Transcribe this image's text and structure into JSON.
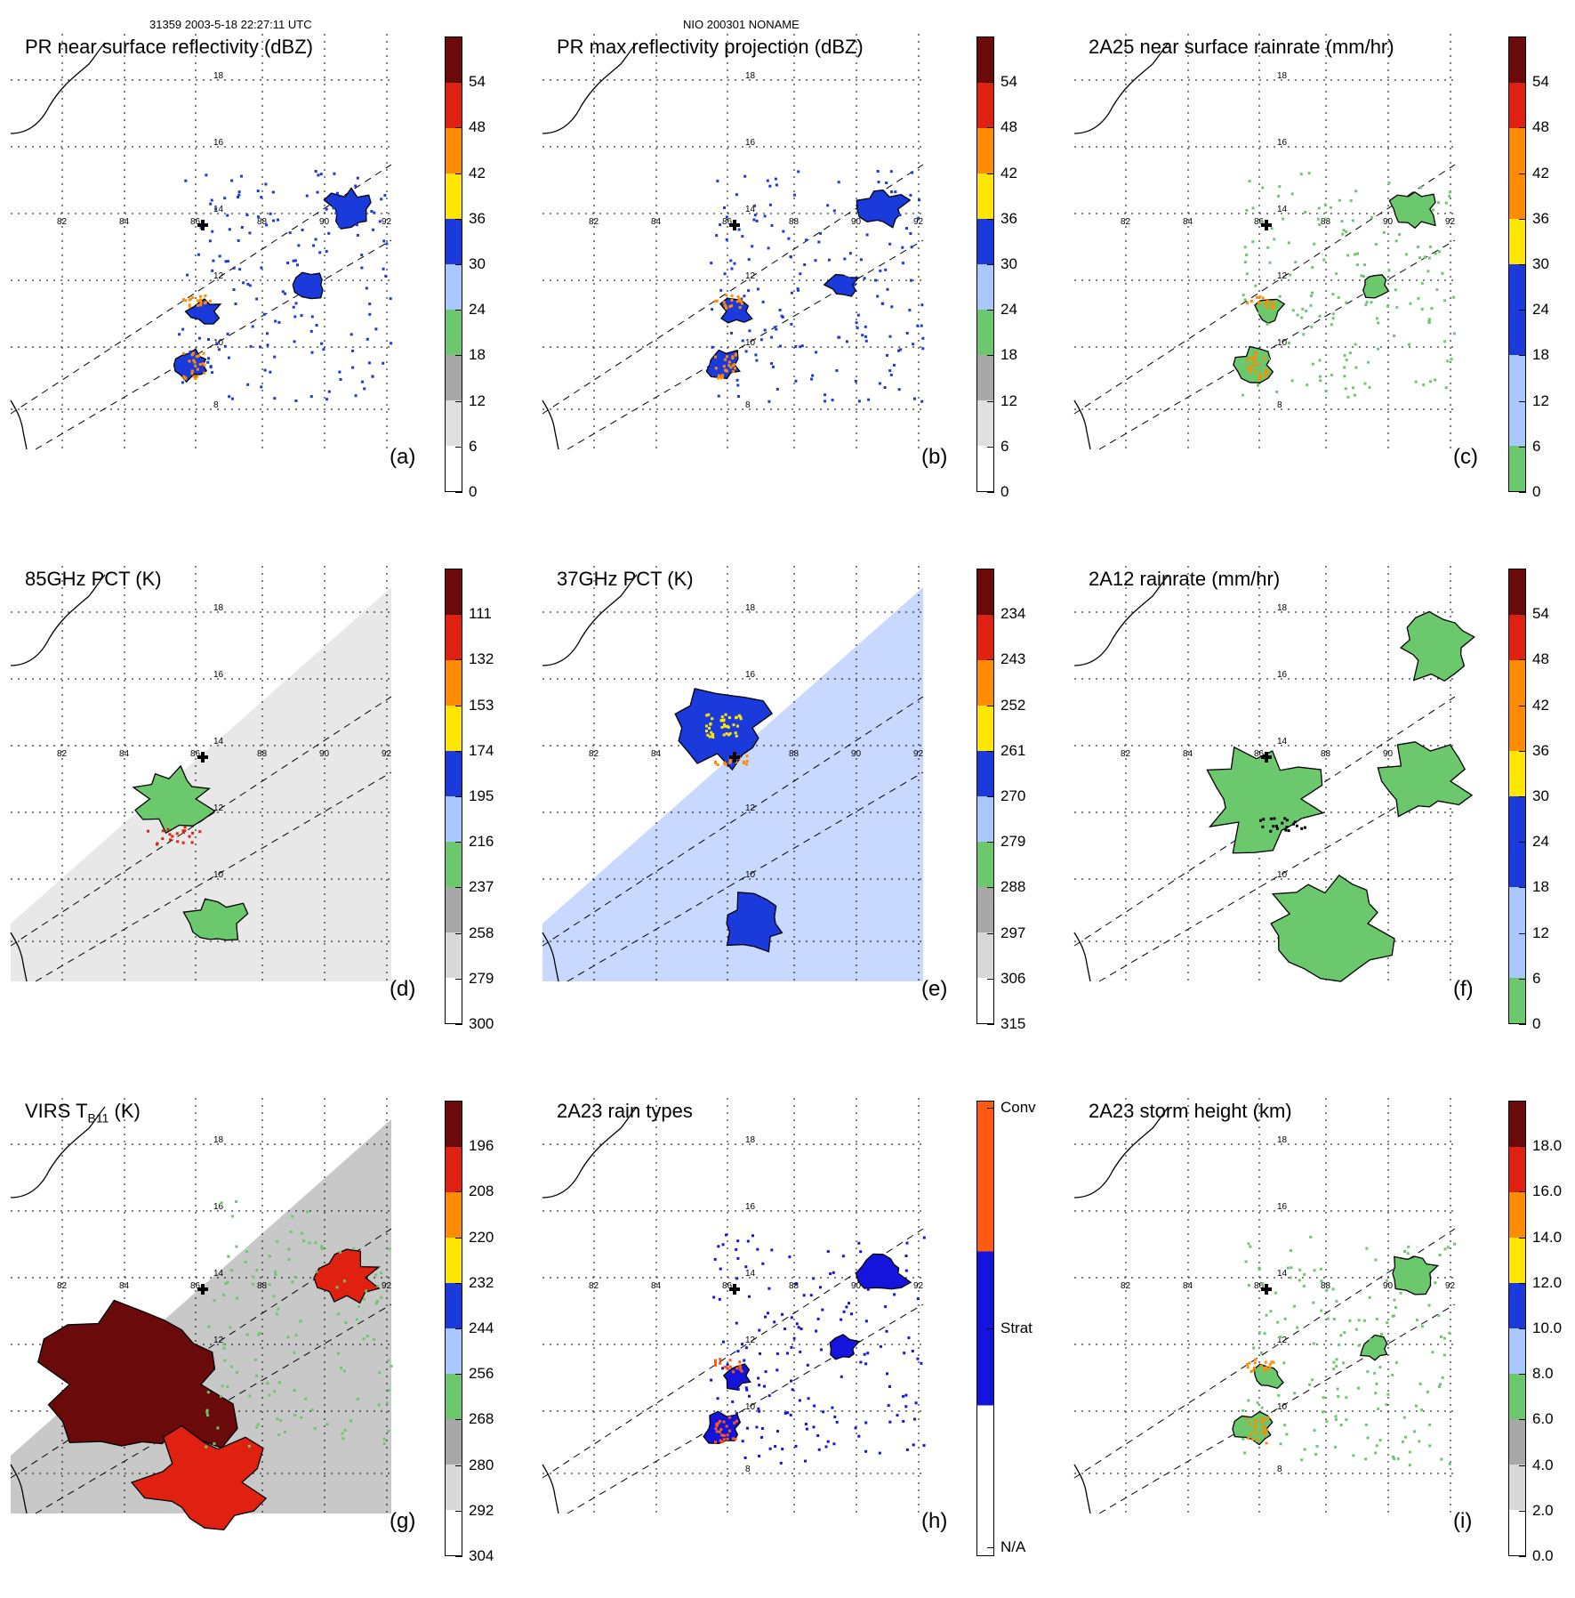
{
  "header": {
    "left": "31359 2003-5-18 22:27:11 UTC",
    "center": "NIO 200301 NONAME"
  },
  "map": {
    "lon_ticks": [
      "82",
      "84",
      "86",
      "88",
      "90",
      "92"
    ],
    "lat_ticks": [
      "18",
      "16",
      "14",
      "12",
      "10",
      "8"
    ],
    "center_marker": "plus-icon"
  },
  "colors": {
    "green": "#6cc86c",
    "gray": "#b8b8b8",
    "lightblue": "#a8c8ff",
    "blue": "#1a3adc",
    "yellow": "#ffe600",
    "orange": "#ff8c00",
    "red": "#e02010",
    "darkred": "#6a0a0a",
    "conv": "#ff5a14",
    "strat": "#1414dc"
  },
  "chart_data": [
    {
      "id": "a",
      "type": "heatmap",
      "title": "PR near surface reflectivity (dBZ)",
      "label": "(a)",
      "colorbar": [
        "0",
        "6",
        "12",
        "18",
        "24",
        "30",
        "36",
        "42",
        "48",
        "54"
      ],
      "scheme": "refl",
      "swath": "pr"
    },
    {
      "id": "b",
      "type": "heatmap",
      "title": "PR max reflectivity projection (dBZ)",
      "label": "(b)",
      "colorbar": [
        "0",
        "6",
        "12",
        "18",
        "24",
        "30",
        "36",
        "42",
        "48",
        "54"
      ],
      "scheme": "refl",
      "swath": "pr"
    },
    {
      "id": "c",
      "type": "heatmap",
      "title": "2A25 near surface rainrate (mm/hr)",
      "label": "(c)",
      "colorbar": [
        "0",
        "6",
        "12",
        "18",
        "24",
        "30",
        "36",
        "42",
        "48",
        "54"
      ],
      "scheme": "rain",
      "swath": "pr"
    },
    {
      "id": "d",
      "type": "heatmap",
      "title": "85GHz PCT (K)",
      "label": "(d)",
      "colorbar": [
        "300",
        "279",
        "258",
        "237",
        "216",
        "195",
        "174",
        "153",
        "132",
        "111"
      ],
      "scheme": "pct85",
      "swath": "tmi"
    },
    {
      "id": "e",
      "type": "heatmap",
      "title": "37GHz PCT (K)",
      "label": "(e)",
      "colorbar": [
        "315",
        "306",
        "297",
        "288",
        "279",
        "270",
        "261",
        "252",
        "243",
        "234"
      ],
      "scheme": "pct37",
      "swath": "tmi"
    },
    {
      "id": "f",
      "type": "heatmap",
      "title": "2A12 rainrate (mm/hr)",
      "label": "(f)",
      "colorbar": [
        "0",
        "6",
        "12",
        "18",
        "24",
        "30",
        "36",
        "42",
        "48",
        "54"
      ],
      "scheme": "rain12",
      "swath": "none"
    },
    {
      "id": "g",
      "type": "heatmap",
      "title": "VIRS T",
      "title_sub": "B11",
      "title_suffix": " (K)",
      "label": "(g)",
      "colorbar": [
        "304",
        "292",
        "280",
        "268",
        "256",
        "244",
        "232",
        "220",
        "208",
        "196"
      ],
      "scheme": "virs",
      "swath": "tmi"
    },
    {
      "id": "h",
      "type": "heatmap",
      "title": "2A23 rain types",
      "label": "(h)",
      "colorbar": [
        "N/A",
        "Strat",
        "Conv"
      ],
      "scheme": "types",
      "swath": "pr"
    },
    {
      "id": "i",
      "type": "heatmap",
      "title": "2A23 storm height (km)",
      "label": "(i)",
      "colorbar": [
        "0.0",
        "2.0",
        "4.0",
        "6.0",
        "8.0",
        "10.0",
        "12.0",
        "14.0",
        "16.0",
        "18.0"
      ],
      "scheme": "height",
      "swath": "pr"
    }
  ]
}
